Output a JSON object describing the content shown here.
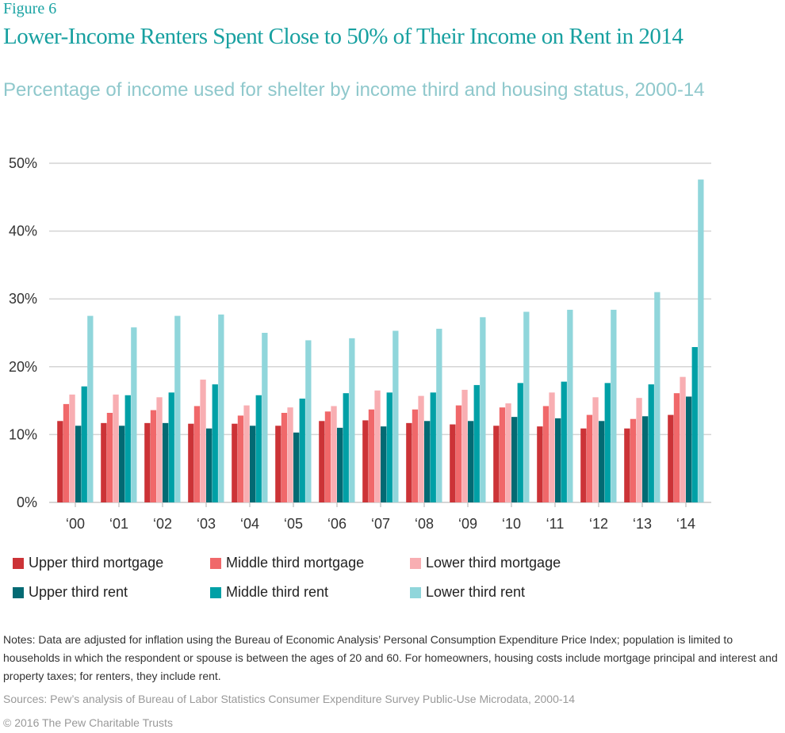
{
  "figure_label": "Figure 6",
  "title": "Lower-Income Renters Spent Close to 50% of Their Income on Rent in 2014",
  "subtitle": "Percentage of income used for shelter by income third and housing status, 2000-14",
  "notes": "Notes: Data are adjusted for inflation using the Bureau of Economic Analysis’ Personal Consumption Expenditure Price Index; population is limited to households in which the respondent or spouse is between the ages of 20 and 60. For homeowners, housing costs include mortgage principal and interest and property taxes; for renters, they include rent.",
  "sources": "Sources: Pew’s analysis of Bureau of Labor Statistics Consumer Expenditure Survey Public-Use Microdata, 2000-14",
  "copyright": "© 2016 The Pew Charitable Trusts",
  "chart_data": {
    "type": "bar",
    "title": "Lower-Income Renters Spent Close to 50% of Their Income on Rent in 2014",
    "xlabel": "",
    "ylabel": "",
    "ylim": [
      0,
      50
    ],
    "yticks": [
      0,
      10,
      20,
      30,
      40,
      50
    ],
    "ytick_labels": [
      "0%",
      "10%",
      "20%",
      "30%",
      "40%",
      "50%"
    ],
    "grid": true,
    "legend_position": "bottom",
    "categories": [
      "‘00",
      "‘01",
      "‘02",
      "‘03",
      "‘04",
      "‘05",
      "‘06",
      "‘07",
      "‘08",
      "‘09",
      "‘10",
      "‘11",
      "‘12",
      "‘13",
      "‘14"
    ],
    "series": [
      {
        "name": "Upper third mortgage",
        "color": "#cc3337",
        "values": [
          12.0,
          11.7,
          11.7,
          11.6,
          11.6,
          11.3,
          12.0,
          12.1,
          11.7,
          11.5,
          11.3,
          11.2,
          10.9,
          10.9,
          12.9
        ]
      },
      {
        "name": "Middle third mortgage",
        "color": "#f0686a",
        "values": [
          14.5,
          13.2,
          13.6,
          14.2,
          12.8,
          13.2,
          13.4,
          13.7,
          13.7,
          14.3,
          14.0,
          14.2,
          12.9,
          12.3,
          16.1
        ]
      },
      {
        "name": "Lower third mortgage",
        "color": "#f8aeb2",
        "values": [
          15.9,
          15.9,
          15.5,
          18.1,
          14.3,
          14.0,
          14.2,
          16.5,
          15.7,
          16.6,
          14.6,
          16.2,
          15.5,
          15.4,
          18.5
        ]
      },
      {
        "name": "Upper third rent",
        "color": "#036a73",
        "values": [
          11.3,
          11.3,
          11.7,
          10.9,
          11.3,
          10.3,
          11.0,
          11.2,
          12.0,
          12.0,
          12.6,
          12.4,
          12.0,
          12.7,
          15.6
        ]
      },
      {
        "name": "Middle third rent",
        "color": "#00a0a6",
        "values": [
          17.1,
          15.8,
          16.2,
          17.4,
          15.8,
          15.3,
          16.1,
          16.2,
          16.2,
          17.3,
          17.6,
          17.8,
          17.6,
          17.4,
          22.9
        ]
      },
      {
        "name": "Lower third rent",
        "color": "#90d6db",
        "values": [
          27.5,
          25.8,
          27.5,
          27.7,
          25.0,
          23.9,
          24.2,
          25.3,
          25.6,
          27.3,
          28.1,
          28.4,
          28.4,
          31.0,
          47.6
        ]
      }
    ]
  }
}
